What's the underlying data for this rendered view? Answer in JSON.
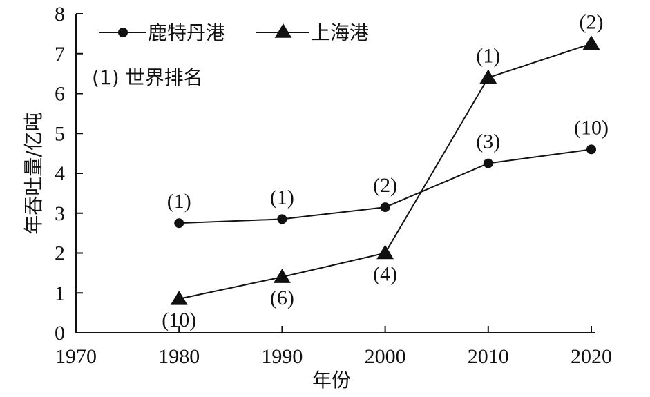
{
  "chart_data": {
    "type": "line",
    "title": "",
    "xlabel": "年份",
    "ylabel": "年吞吐量/亿吨",
    "xlim": [
      1970,
      2020
    ],
    "ylim": [
      0,
      8
    ],
    "x_ticks": [
      "1970",
      "1980",
      "1990",
      "2000",
      "2010",
      "2020"
    ],
    "y_ticks": [
      "0",
      "1",
      "2",
      "3",
      "4",
      "5",
      "6",
      "7",
      "8"
    ],
    "legend_note": "(1) 世界排名",
    "legend_position": "top-left",
    "series": [
      {
        "name": "鹿特丹港",
        "marker": "circle",
        "x": [
          1980,
          1990,
          2000,
          2010,
          2020
        ],
        "y": [
          2.75,
          2.85,
          3.15,
          4.25,
          4.6
        ],
        "rank_labels": [
          "(1)",
          "(1)",
          "(2)",
          "(3)",
          "(10)"
        ],
        "label_side": [
          "above",
          "above",
          "above",
          "above",
          "above"
        ]
      },
      {
        "name": "上海港",
        "marker": "triangle",
        "x": [
          1980,
          1990,
          2000,
          2010,
          2020
        ],
        "y": [
          0.85,
          1.4,
          2.0,
          6.4,
          7.25
        ],
        "rank_labels": [
          "(10)",
          "(6)",
          "(4)",
          "(1)",
          "(2)"
        ],
        "label_side": [
          "below",
          "below",
          "below",
          "above",
          "above"
        ]
      }
    ]
  }
}
